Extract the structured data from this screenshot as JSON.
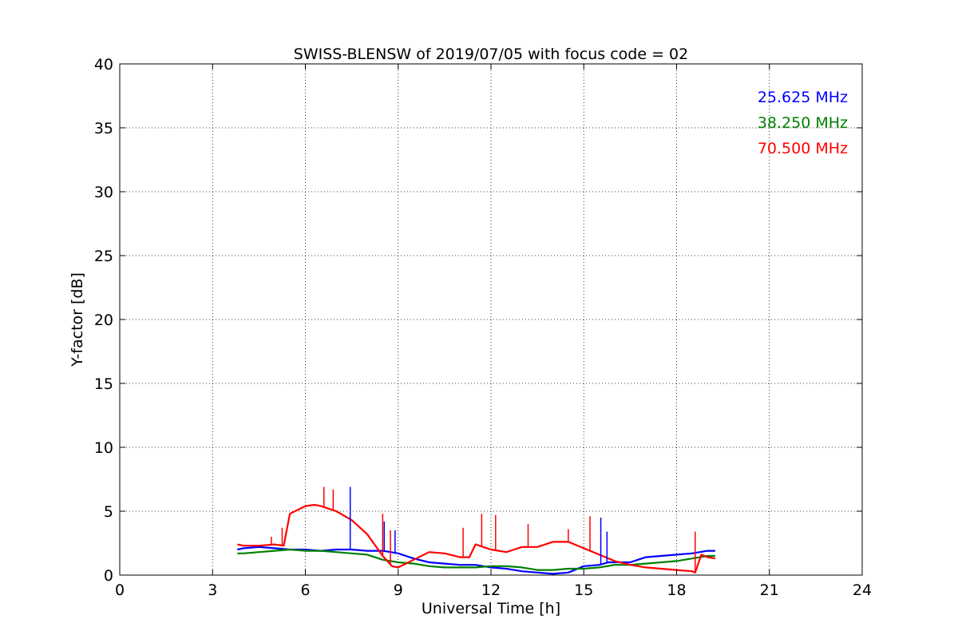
{
  "chart_data": {
    "type": "line",
    "title": "SWISS-BLENSW of 2019/07/05 with focus code = 02",
    "xlabel": "Universal Time [h]",
    "ylabel": "Y-factor [dB]",
    "xlim": [
      0,
      24
    ],
    "ylim": [
      0,
      40
    ],
    "xticks": [
      0,
      3,
      6,
      9,
      12,
      15,
      18,
      21,
      24
    ],
    "yticks": [
      0,
      5,
      10,
      15,
      20,
      25,
      30,
      35,
      40
    ],
    "xtick_labels": [
      "0",
      "3",
      "6",
      "9",
      "12",
      "15",
      "18",
      "21",
      "24"
    ],
    "ytick_labels": [
      "0",
      "5",
      "10",
      "15",
      "20",
      "25",
      "30",
      "35",
      "40"
    ],
    "grid": true,
    "legend_placement": "top-right",
    "series": [
      {
        "name": "25.625 MHz",
        "color": "#0000ff",
        "x": [
          3.8,
          4.0,
          4.5,
          5.0,
          5.5,
          6.0,
          6.5,
          7.0,
          7.5,
          8.0,
          8.5,
          9.0,
          9.5,
          10.0,
          10.5,
          11.0,
          11.5,
          12.0,
          12.5,
          13.0,
          13.5,
          14.0,
          14.5,
          15.0,
          15.5,
          15.8,
          16.0,
          16.5,
          17.0,
          17.5,
          18.0,
          18.5,
          19.0,
          19.25
        ],
        "y": [
          2.0,
          2.1,
          2.2,
          2.1,
          2.0,
          2.0,
          1.9,
          2.0,
          2.0,
          1.9,
          1.9,
          1.7,
          1.3,
          1.0,
          0.9,
          0.8,
          0.8,
          0.6,
          0.5,
          0.3,
          0.2,
          0.1,
          0.2,
          0.7,
          0.8,
          1.0,
          1.0,
          1.0,
          1.4,
          1.5,
          1.6,
          1.7,
          1.9,
          1.9
        ]
      },
      {
        "name": "38.250 MHz",
        "color": "#008000",
        "x": [
          3.8,
          4.0,
          4.5,
          5.0,
          5.5,
          6.0,
          6.5,
          7.0,
          7.5,
          8.0,
          8.5,
          9.0,
          9.5,
          10.0,
          10.5,
          11.0,
          11.5,
          12.0,
          12.5,
          13.0,
          13.5,
          14.0,
          14.5,
          15.0,
          15.5,
          16.0,
          16.5,
          17.0,
          17.5,
          18.0,
          18.5,
          19.0,
          19.25
        ],
        "y": [
          1.7,
          1.7,
          1.8,
          1.9,
          2.0,
          1.9,
          1.9,
          1.8,
          1.7,
          1.6,
          1.2,
          1.0,
          0.9,
          0.7,
          0.6,
          0.6,
          0.6,
          0.7,
          0.7,
          0.6,
          0.4,
          0.4,
          0.5,
          0.5,
          0.6,
          0.8,
          0.8,
          0.9,
          1.0,
          1.1,
          1.3,
          1.5,
          1.5
        ]
      },
      {
        "name": "70.500 MHz",
        "color": "#ff0000",
        "x": [
          3.8,
          4.0,
          4.5,
          5.0,
          5.3,
          5.5,
          6.0,
          6.3,
          6.5,
          7.0,
          7.5,
          8.0,
          8.5,
          8.8,
          9.0,
          9.5,
          10.0,
          10.5,
          11.0,
          11.3,
          11.5,
          12.0,
          12.5,
          13.0,
          13.5,
          14.0,
          14.5,
          15.0,
          15.5,
          16.0,
          16.5,
          17.0,
          17.5,
          18.0,
          18.5,
          18.6,
          18.8,
          19.0,
          19.25
        ],
        "y": [
          2.4,
          2.3,
          2.3,
          2.4,
          2.3,
          4.8,
          5.4,
          5.5,
          5.4,
          5.0,
          4.3,
          3.2,
          1.5,
          0.7,
          0.6,
          1.2,
          1.8,
          1.7,
          1.4,
          1.4,
          2.4,
          2.0,
          1.8,
          2.2,
          2.2,
          2.6,
          2.6,
          2.1,
          1.6,
          1.1,
          0.8,
          0.6,
          0.5,
          0.4,
          0.3,
          0.2,
          1.6,
          1.4,
          1.3
        ]
      }
    ],
    "spikes": [
      {
        "series": "25.625 MHz",
        "x": 7.45,
        "y": 6.9
      },
      {
        "series": "25.625 MHz",
        "x": 8.55,
        "y": 4.2
      },
      {
        "series": "25.625 MHz",
        "x": 8.9,
        "y": 3.5
      },
      {
        "series": "25.625 MHz",
        "x": 15.55,
        "y": 4.5
      },
      {
        "series": "25.625 MHz",
        "x": 15.75,
        "y": 3.4
      },
      {
        "series": "70.500 MHz",
        "x": 4.9,
        "y": 3.0
      },
      {
        "series": "70.500 MHz",
        "x": 5.25,
        "y": 3.7
      },
      {
        "series": "70.500 MHz",
        "x": 6.6,
        "y": 6.9
      },
      {
        "series": "70.500 MHz",
        "x": 6.9,
        "y": 6.7
      },
      {
        "series": "70.500 MHz",
        "x": 8.5,
        "y": 4.8
      },
      {
        "series": "70.500 MHz",
        "x": 8.75,
        "y": 3.5
      },
      {
        "series": "70.500 MHz",
        "x": 11.1,
        "y": 3.7
      },
      {
        "series": "70.500 MHz",
        "x": 11.7,
        "y": 4.8
      },
      {
        "series": "70.500 MHz",
        "x": 12.15,
        "y": 4.7
      },
      {
        "series": "70.500 MHz",
        "x": 13.2,
        "y": 4.0
      },
      {
        "series": "70.500 MHz",
        "x": 14.5,
        "y": 3.6
      },
      {
        "series": "70.500 MHz",
        "x": 15.2,
        "y": 4.6
      },
      {
        "series": "70.500 MHz",
        "x": 18.6,
        "y": 3.4
      }
    ]
  }
}
